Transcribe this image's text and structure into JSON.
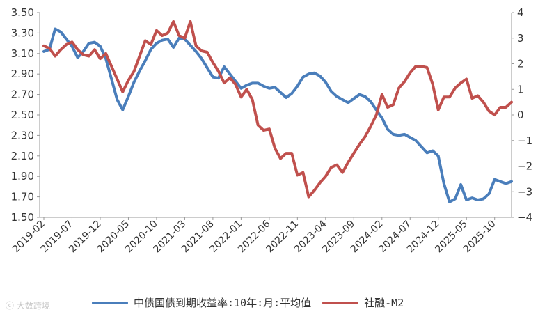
{
  "chart_data": {
    "type": "line",
    "title": "",
    "y_left": {
      "min": 1.5,
      "max": 3.5,
      "ticks": [
        "3.50",
        "3.30",
        "3.10",
        "2.90",
        "2.70",
        "2.50",
        "2.30",
        "2.10",
        "1.90",
        "1.70",
        "1.50"
      ]
    },
    "y_right": {
      "min": -4,
      "max": 4,
      "ticks": [
        "4",
        "3",
        "2",
        "1",
        "0",
        "−1",
        "−2",
        "−3",
        "−4"
      ]
    },
    "x_tick_labels": [
      "2019-02",
      "2019-07",
      "2019-12",
      "2020-05",
      "2020-10",
      "2021-03",
      "2021-08",
      "2022-01",
      "2022-06",
      "2022-11",
      "2023-04",
      "2023-09",
      "2024-02",
      "2024-07",
      "2024-12",
      "2025-05",
      "2025-10"
    ],
    "legend_position": "bottom",
    "series": [
      {
        "name": "中债国债到期收益率:10年:月:平均值",
        "axis": "left",
        "color": "#4a7ebb",
        "start": "2019-02",
        "values": [
          3.12,
          3.14,
          3.34,
          3.31,
          3.24,
          3.17,
          3.06,
          3.12,
          3.2,
          3.21,
          3.17,
          3.05,
          2.85,
          2.65,
          2.55,
          2.68,
          2.82,
          2.93,
          3.03,
          3.14,
          3.2,
          3.23,
          3.24,
          3.16,
          3.25,
          3.24,
          3.18,
          3.12,
          3.05,
          2.96,
          2.87,
          2.86,
          2.97,
          2.9,
          2.83,
          2.76,
          2.79,
          2.81,
          2.81,
          2.78,
          2.76,
          2.77,
          2.72,
          2.67,
          2.71,
          2.78,
          2.87,
          2.9,
          2.91,
          2.88,
          2.82,
          2.73,
          2.68,
          2.65,
          2.62,
          2.66,
          2.7,
          2.68,
          2.63,
          2.55,
          2.47,
          2.36,
          2.31,
          2.3,
          2.31,
          2.28,
          2.25,
          2.19,
          2.13,
          2.15,
          2.1,
          1.83,
          1.65,
          1.68,
          1.82,
          1.67,
          1.69,
          1.67,
          1.68,
          1.73,
          1.87,
          1.85,
          1.83,
          1.85
        ]
      },
      {
        "name": "社融-M2",
        "axis": "right",
        "color": "#c0504d",
        "start": "2019-02",
        "values": [
          2.7,
          2.6,
          2.3,
          2.55,
          2.75,
          2.85,
          2.55,
          2.35,
          2.3,
          2.55,
          2.2,
          2.4,
          1.9,
          1.4,
          0.9,
          1.35,
          1.7,
          2.3,
          2.9,
          2.75,
          3.3,
          3.1,
          3.2,
          3.65,
          3.1,
          3.0,
          3.65,
          2.7,
          2.5,
          2.45,
          2.05,
          1.7,
          1.25,
          1.45,
          1.2,
          0.7,
          1.0,
          0.6,
          -0.4,
          -0.6,
          -0.55,
          -1.3,
          -1.7,
          -1.5,
          -1.5,
          -2.35,
          -2.25,
          -3.2,
          -2.95,
          -2.65,
          -2.4,
          -2.05,
          -1.95,
          -2.25,
          -1.85,
          -1.5,
          -1.15,
          -0.85,
          -0.45,
          0.0,
          0.8,
          0.3,
          0.4,
          1.05,
          1.3,
          1.65,
          1.9,
          1.9,
          1.85,
          1.2,
          0.2,
          0.7,
          0.7,
          1.05,
          1.25,
          1.4,
          0.65,
          0.75,
          0.5,
          0.15,
          0.0,
          0.3,
          0.3,
          0.5
        ]
      }
    ]
  },
  "legend": {
    "series1": "中债国债到期收益率:10年:月:平均值",
    "series2": "社融-M2"
  },
  "watermark": "大数跨境"
}
